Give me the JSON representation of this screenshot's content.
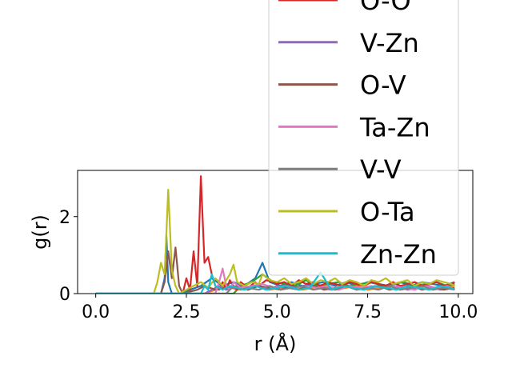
{
  "chart_data": {
    "type": "line",
    "title": "",
    "xlabel": "r (Å)",
    "ylabel": "g(r)",
    "xlim": [
      -0.5,
      10.4
    ],
    "ylim": [
      0,
      3.2
    ],
    "xticks": [
      0.0,
      2.5,
      5.0,
      7.5,
      10.0
    ],
    "xtick_labels": [
      "0.0",
      "2.5",
      "5.0",
      "7.5",
      "10.0"
    ],
    "yticks": [
      0,
      2
    ],
    "ytick_labels": [
      "0",
      "2"
    ],
    "grid": false,
    "legend_placement": "upper-right",
    "series": [
      {
        "name": "O-O",
        "color": "#d62728",
        "x": [
          0,
          1.9,
          2.0,
          2.4,
          2.5,
          2.6,
          2.7,
          2.8,
          2.9,
          3.0,
          3.1,
          3.2,
          3.3,
          3.4,
          3.5,
          3.6,
          3.7,
          3.8,
          3.9,
          4.0,
          4.2,
          4.4,
          4.5,
          4.7,
          4.9,
          5.0,
          5.2,
          5.4,
          5.6,
          5.8,
          6.0,
          6.2,
          6.4,
          6.6,
          6.8,
          7.0,
          7.2,
          7.4,
          7.6,
          7.8,
          8.0,
          8.2,
          8.4,
          8.6,
          8.8,
          9.0,
          9.2,
          9.4,
          9.6,
          9.8,
          9.9
        ],
        "y": [
          0,
          0,
          0,
          0,
          0.4,
          0.1,
          1.1,
          0.2,
          3.05,
          0.8,
          0.95,
          0.5,
          0.2,
          0.1,
          0.3,
          0.1,
          0.35,
          0.2,
          0.1,
          0.3,
          0.15,
          0.3,
          0.2,
          0.35,
          0.3,
          0.25,
          0.3,
          0.2,
          0.35,
          0.25,
          0.3,
          0.2,
          0.3,
          0.25,
          0.2,
          0.3,
          0.25,
          0.2,
          0.3,
          0.25,
          0.2,
          0.3,
          0.2,
          0.25,
          0.3,
          0.2,
          0.25,
          0.3,
          0.2,
          0.25,
          0.3
        ]
      },
      {
        "name": "V-Zn",
        "color": "#9467bd",
        "x": [
          0,
          3.0,
          3.2,
          3.4,
          3.6,
          3.8,
          4.0,
          4.2,
          4.4,
          4.6,
          4.8,
          5.0,
          5.3,
          5.6,
          5.9,
          6.2,
          6.5,
          6.8,
          7.1,
          7.4,
          7.7,
          8.0,
          8.3,
          8.6,
          8.9,
          9.2,
          9.5,
          9.8,
          9.9
        ],
        "y": [
          0,
          0,
          0.1,
          0.2,
          0.1,
          0.15,
          0.25,
          0.1,
          0.2,
          0.15,
          0.1,
          0.2,
          0.15,
          0.1,
          0.2,
          0.15,
          0.1,
          0.2,
          0.15,
          0.1,
          0.2,
          0.15,
          0.2,
          0.1,
          0.15,
          0.2,
          0.1,
          0.15,
          0.1
        ]
      },
      {
        "name": "O-V",
        "color": "#8c564b",
        "x": [
          0,
          1.8,
          1.9,
          2.0,
          2.1,
          2.2,
          2.3,
          2.4,
          2.6,
          2.8,
          3.0,
          3.3,
          3.6,
          3.9,
          4.2,
          4.5,
          4.8,
          5.1,
          5.4,
          5.7,
          6.0,
          6.3,
          6.6,
          6.9,
          7.2,
          7.5,
          7.8,
          8.1,
          8.4,
          8.7,
          9.0,
          9.3,
          9.6,
          9.9
        ],
        "y": [
          0,
          0,
          0.3,
          1.1,
          0.4,
          1.2,
          0.2,
          0,
          0.05,
          0.1,
          0.2,
          0.1,
          0.15,
          0.2,
          0.1,
          0.2,
          0.15,
          0.1,
          0.2,
          0.15,
          0.2,
          0.1,
          0.15,
          0.2,
          0.1,
          0.15,
          0.2,
          0.1,
          0.15,
          0.2,
          0.1,
          0.15,
          0.1,
          0.15
        ]
      },
      {
        "name": "Ta-Zn",
        "color": "#e377c2",
        "x": [
          0,
          3.3,
          3.4,
          3.5,
          3.6,
          3.7,
          3.8,
          4.0,
          4.3,
          4.6,
          4.9,
          5.2,
          5.5,
          5.8,
          6.1,
          6.4,
          6.7,
          7.0,
          7.3,
          7.6,
          7.9,
          8.2,
          8.5,
          8.8,
          9.1,
          9.4,
          9.7,
          9.9
        ],
        "y": [
          0,
          0,
          0.3,
          0.65,
          0.2,
          0.1,
          0.3,
          0.15,
          0.2,
          0.25,
          0.15,
          0.2,
          0.15,
          0.2,
          0.15,
          0.2,
          0.1,
          0.2,
          0.15,
          0.2,
          0.15,
          0.2,
          0.15,
          0.1,
          0.2,
          0.15,
          0.2,
          0.1
        ]
      },
      {
        "name": "V-V",
        "color": "#7f7f7f",
        "x": [
          0,
          3.6,
          3.8,
          4.0,
          4.2,
          4.5,
          4.8,
          5.1,
          5.4,
          5.7,
          6.0,
          6.3,
          6.6,
          6.9,
          7.2,
          7.5,
          7.8,
          8.1,
          8.4,
          8.7,
          9.0,
          9.3,
          9.6,
          9.9
        ],
        "y": [
          0,
          0,
          0.2,
          0.1,
          0.15,
          0.1,
          0.2,
          0.1,
          0.15,
          0.2,
          0.1,
          0.15,
          0.1,
          0.2,
          0.1,
          0.15,
          0.1,
          0.2,
          0.1,
          0.15,
          0.2,
          0.1,
          0.15,
          0.1
        ]
      },
      {
        "name": "O-Ta",
        "color": "#bcbd22",
        "x": [
          0,
          1.6,
          1.7,
          1.8,
          1.9,
          2.0,
          2.1,
          2.2,
          2.3,
          2.5,
          2.7,
          2.9,
          3.1,
          3.3,
          3.5,
          3.7,
          3.8,
          3.9,
          4.1,
          4.3,
          4.5,
          4.6,
          4.8,
          5.0,
          5.2,
          5.4,
          5.6,
          5.8,
          6.0,
          6.2,
          6.4,
          6.6,
          6.8,
          7.0,
          7.2,
          7.4,
          7.6,
          7.8,
          8.0,
          8.2,
          8.4,
          8.6,
          8.8,
          9.0,
          9.2,
          9.4,
          9.6,
          9.8,
          9.9
        ],
        "y": [
          0,
          0,
          0.3,
          0.8,
          0.5,
          2.7,
          0.6,
          0.2,
          0,
          0.1,
          0.2,
          0.3,
          0.15,
          0.4,
          0.2,
          0.5,
          0.75,
          0.3,
          0.2,
          0.3,
          0.25,
          0.5,
          0.35,
          0.3,
          0.4,
          0.25,
          0.3,
          0.4,
          0.25,
          0.35,
          0.3,
          0.4,
          0.25,
          0.35,
          0.3,
          0.2,
          0.35,
          0.3,
          0.4,
          0.25,
          0.3,
          0.35,
          0.2,
          0.3,
          0.25,
          0.35,
          0.3,
          0.25,
          0.2
        ]
      },
      {
        "name": "Zn-Zn",
        "color": "#17becf",
        "x": [
          0,
          2.9,
          3.0,
          3.1,
          3.2,
          3.3,
          3.5,
          3.7,
          3.9,
          4.1,
          4.4,
          4.7,
          5.0,
          5.3,
          5.6,
          5.9,
          6.2,
          6.5,
          6.8,
          7.1,
          7.4,
          7.7,
          8.0,
          8.3,
          8.6,
          8.9,
          9.2,
          9.5,
          9.8,
          9.9
        ],
        "y": [
          0,
          0,
          0.2,
          0.1,
          0.5,
          0.2,
          0.1,
          0.2,
          0.15,
          0.1,
          0.2,
          0.1,
          0.15,
          0.2,
          0.1,
          0.15,
          0.55,
          0.1,
          0.2,
          0.15,
          0.1,
          0.2,
          0.15,
          0.1,
          0.2,
          0.15,
          0.1,
          0.2,
          0.15,
          0.1
        ]
      },
      {
        "name": "",
        "color": "#1f77b4",
        "x": [
          0,
          1.8,
          1.9,
          1.95,
          2.0,
          2.1,
          2.3,
          2.6,
          2.9,
          3.2,
          3.5,
          3.8,
          4.1,
          4.4,
          4.6,
          4.8,
          5.1,
          5.4,
          5.7,
          6.0,
          6.3,
          6.6,
          6.9,
          7.2,
          7.5,
          7.8,
          8.1,
          8.4,
          8.7,
          9.0,
          9.3,
          9.6,
          9.9
        ],
        "y": [
          0,
          0,
          0.4,
          1.5,
          0.3,
          0,
          0,
          0.1,
          0.2,
          0.4,
          0.2,
          0.3,
          0.2,
          0.4,
          0.8,
          0.3,
          0.2,
          0.3,
          0.2,
          0.25,
          0.3,
          0.2,
          0.3,
          0.2,
          0.3,
          0.25,
          0.2,
          0.3,
          0.2,
          0.3,
          0.25,
          0.2,
          0.3
        ]
      },
      {
        "name": "",
        "color": "#2ca02c",
        "x": [
          0,
          3.8,
          4.0,
          4.3,
          4.6,
          4.9,
          5.2,
          5.5,
          5.8,
          6.1,
          6.4,
          6.7,
          7.0,
          7.3,
          7.6,
          7.9,
          8.2,
          8.5,
          8.8,
          9.1,
          9.4,
          9.7,
          9.9
        ],
        "y": [
          0,
          0,
          0.2,
          0.3,
          0.5,
          0.3,
          0.25,
          0.2,
          0.35,
          0.2,
          0.25,
          0.3,
          0.2,
          0.25,
          0.3,
          0.2,
          0.25,
          0.3,
          0.2,
          0.25,
          0.3,
          0.2,
          0.25
        ]
      },
      {
        "name": "",
        "color": "#ff7f0e",
        "x": [
          0,
          3.0,
          3.3,
          3.6,
          3.9,
          4.2,
          4.5,
          4.8,
          5.1,
          5.4,
          5.7,
          6.0,
          6.3,
          6.6,
          6.9,
          7.2,
          7.5,
          7.8,
          8.1,
          8.4,
          8.7,
          9.0,
          9.3,
          9.6,
          9.9
        ],
        "y": [
          0,
          0,
          0.1,
          0.2,
          0.1,
          0.15,
          0.2,
          0.1,
          0.15,
          0.2,
          0.1,
          0.15,
          0.2,
          0.1,
          0.15,
          0.2,
          0.1,
          0.15,
          0.2,
          0.1,
          0.15,
          0.2,
          0.1,
          0.15,
          0.2
        ]
      }
    ],
    "legend_entries": [
      {
        "label": "O-O",
        "color": "#d62728"
      },
      {
        "label": "V-Zn",
        "color": "#9467bd"
      },
      {
        "label": "O-V",
        "color": "#8c564b"
      },
      {
        "label": "Ta-Zn",
        "color": "#e377c2"
      },
      {
        "label": "V-V",
        "color": "#7f7f7f"
      },
      {
        "label": "O-Ta",
        "color": "#bcbd22"
      },
      {
        "label": "Zn-Zn",
        "color": "#17becf"
      }
    ]
  }
}
